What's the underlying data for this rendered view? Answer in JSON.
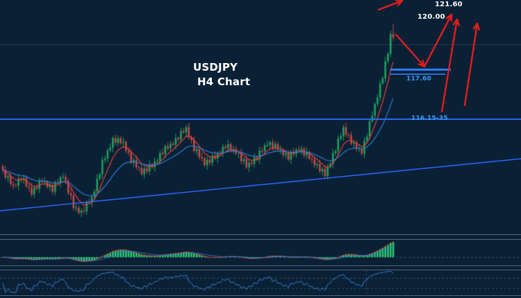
{
  "header": {
    "symbol": "USDJPY",
    "timeframe": "H4 Chart"
  },
  "annotations_text": {
    "target_upper": "121.60",
    "target_round": "120.00",
    "level_broken": "117.60",
    "level_zone": "116.15-35"
  },
  "colors": {
    "background": "#0a2035",
    "bull": "#1fa35c",
    "bear": "#c74a44",
    "ma_fast": "#e8413a",
    "ma_slow": "#2f7ed8",
    "histogram": "#2ecc71",
    "oscillator": "#3f7fd6",
    "level_blue": "#2d7dfc",
    "trendline_blue": "#2b63f5",
    "arrow_red": "#e31e1e",
    "label_blue": "#3b9dff",
    "label_white": "#ffffff"
  },
  "chart_data": {
    "type": "candlestick",
    "symbol": "USDJPY",
    "timeframe": "H4",
    "ylim": [
      112.35,
      120.4
    ],
    "price_levels": [
      {
        "label": "117.60",
        "price": 117.6,
        "role": "broken-resistance"
      },
      {
        "label": "116.15-35",
        "price_low": 116.15,
        "price_high": 116.35,
        "role": "support-zone"
      }
    ],
    "projection_targets": [
      120.0,
      121.6
    ],
    "trendline": {
      "start_price": 113.15,
      "end_price": 114.95
    },
    "indicators": {
      "overlay_mas": [
        {
          "type": "EMA",
          "period": 7,
          "color_key": "ma_fast"
        },
        {
          "type": "EMA",
          "period": 20,
          "color_key": "ma_slow"
        }
      ],
      "pane1": {
        "type": "MACD",
        "fast": 12,
        "slow": 26,
        "signal": 9
      },
      "pane2": {
        "type": "RSI",
        "period": 6,
        "levels": [
          70,
          30
        ]
      }
    },
    "arrows": [
      {
        "name": "projection-arrow-offscreen",
        "points": [
          [
            545,
            14
          ],
          [
            579,
            1
          ]
        ]
      },
      {
        "name": "projection-dip-arrow",
        "points": [
          [
            570,
            50
          ],
          [
            611,
            96
          ]
        ]
      },
      {
        "name": "projection-rally-arrow-1",
        "points": [
          [
            611,
            96
          ],
          [
            650,
            21
          ]
        ]
      },
      {
        "name": "projection-rally-arrow-2",
        "points": [
          [
            636,
            161
          ],
          [
            658,
            28
          ]
        ]
      },
      {
        "name": "projection-rally-arrow-3",
        "points": [
          [
            669,
            152
          ],
          [
            687,
            34
          ]
        ]
      }
    ],
    "session_divider_x": 527,
    "candles": [
      [
        114.68,
        114.76,
        114.44,
        114.56
      ],
      [
        114.56,
        114.71,
        114.23,
        114.29
      ],
      [
        114.29,
        114.41,
        114.14,
        114.35
      ],
      [
        114.35,
        114.47,
        113.99,
        114.08
      ],
      [
        114.08,
        114.18,
        113.91,
        114.03
      ],
      [
        114.03,
        114.11,
        113.96,
        114.02
      ],
      [
        114.02,
        114.41,
        113.87,
        114.26
      ],
      [
        114.26,
        114.32,
        114.12,
        114.21
      ],
      [
        114.21,
        114.4,
        114.09,
        114.28
      ],
      [
        114.28,
        114.38,
        113.94,
        114.0
      ],
      [
        114.0,
        114.08,
        113.81,
        113.96
      ],
      [
        113.96,
        114.11,
        113.63,
        113.72
      ],
      [
        113.72,
        114.02,
        113.6,
        113.96
      ],
      [
        113.96,
        114.08,
        113.85,
        113.91
      ],
      [
        113.91,
        114.3,
        113.76,
        114.2
      ],
      [
        114.2,
        114.28,
        114.06,
        114.15
      ],
      [
        114.15,
        114.31,
        114.03,
        114.16
      ],
      [
        114.16,
        114.22,
        113.91,
        113.97
      ],
      [
        113.97,
        114.16,
        113.82,
        114.04
      ],
      [
        114.04,
        114.14,
        113.72,
        113.81
      ],
      [
        113.81,
        114.21,
        113.69,
        114.13
      ],
      [
        114.13,
        114.25,
        114.04,
        114.1
      ],
      [
        114.1,
        114.37,
        113.95,
        114.31
      ],
      [
        114.31,
        114.44,
        114.22,
        114.32
      ],
      [
        114.32,
        114.42,
        114.07,
        114.19
      ],
      [
        114.19,
        114.27,
        113.7,
        113.76
      ],
      [
        113.76,
        113.91,
        113.53,
        113.68
      ],
      [
        113.68,
        113.74,
        113.16,
        113.25
      ],
      [
        113.25,
        113.38,
        113.13,
        113.26
      ],
      [
        113.26,
        113.36,
        113.03,
        113.09
      ],
      [
        113.09,
        113.24,
        112.94,
        113.16
      ],
      [
        113.16,
        113.31,
        113.05,
        113.14
      ],
      [
        113.14,
        113.51,
        113.02,
        113.45
      ],
      [
        113.45,
        113.57,
        113.37,
        113.43
      ],
      [
        113.43,
        113.73,
        113.28,
        113.63
      ],
      [
        113.63,
        113.9,
        113.54,
        113.82
      ],
      [
        113.82,
        114.41,
        113.7,
        114.26
      ],
      [
        114.26,
        114.47,
        114.2,
        114.41
      ],
      [
        114.41,
        115.02,
        114.26,
        114.9
      ],
      [
        114.9,
        115.05,
        114.81,
        114.95
      ],
      [
        114.95,
        115.31,
        114.83,
        115.23
      ],
      [
        115.23,
        115.47,
        115.17,
        115.32
      ],
      [
        115.32,
        115.72,
        115.17,
        115.66
      ],
      [
        115.66,
        115.78,
        115.4,
        115.49
      ],
      [
        115.49,
        115.75,
        115.37,
        115.65
      ],
      [
        115.65,
        115.73,
        115.42,
        115.48
      ],
      [
        115.48,
        115.68,
        115.33,
        115.53
      ],
      [
        115.53,
        115.59,
        115.13,
        115.22
      ],
      [
        115.22,
        115.34,
        115.04,
        115.16
      ],
      [
        115.16,
        115.26,
        114.75,
        114.81
      ],
      [
        114.81,
        114.98,
        114.66,
        114.9
      ],
      [
        114.9,
        115.05,
        114.56,
        114.65
      ],
      [
        114.65,
        114.71,
        114.51,
        114.63
      ],
      [
        114.63,
        114.75,
        114.36,
        114.42
      ],
      [
        114.42,
        114.71,
        114.27,
        114.61
      ],
      [
        114.61,
        114.69,
        114.42,
        114.51
      ],
      [
        114.51,
        114.9,
        114.39,
        114.75
      ],
      [
        114.75,
        114.81,
        114.59,
        114.65
      ],
      [
        114.65,
        114.98,
        114.5,
        114.86
      ],
      [
        114.86,
        114.97,
        114.77,
        114.87
      ],
      [
        114.87,
        115.22,
        114.75,
        115.14
      ],
      [
        115.14,
        115.29,
        115.05,
        115.11
      ],
      [
        115.11,
        115.44,
        114.96,
        115.38
      ],
      [
        115.38,
        115.5,
        115.21,
        115.3
      ],
      [
        115.3,
        115.56,
        115.18,
        115.46
      ],
      [
        115.46,
        115.54,
        115.36,
        115.42
      ],
      [
        115.42,
        115.81,
        115.27,
        115.66
      ],
      [
        115.66,
        115.72,
        115.52,
        115.61
      ],
      [
        115.61,
        116.02,
        115.49,
        115.9
      ],
      [
        115.9,
        116.0,
        115.79,
        115.85
      ],
      [
        115.85,
        116.11,
        115.7,
        116.03
      ],
      [
        116.03,
        116.18,
        115.6,
        115.69
      ],
      [
        115.69,
        115.75,
        115.47,
        115.59
      ],
      [
        115.59,
        115.71,
        115.15,
        115.21
      ],
      [
        115.21,
        115.38,
        115.06,
        115.28
      ],
      [
        115.28,
        115.36,
        114.91,
        115.0
      ],
      [
        115.0,
        115.15,
        114.84,
        114.96
      ],
      [
        114.96,
        115.02,
        114.66,
        114.72
      ],
      [
        114.72,
        115.03,
        114.57,
        114.91
      ],
      [
        114.91,
        115.01,
        114.72,
        114.81
      ],
      [
        114.81,
        115.13,
        114.69,
        115.05
      ],
      [
        115.05,
        115.2,
        114.89,
        114.95
      ],
      [
        114.95,
        115.19,
        114.8,
        115.13
      ],
      [
        115.13,
        115.25,
        115.03,
        115.12
      ],
      [
        115.12,
        115.46,
        115.0,
        115.36
      ],
      [
        115.36,
        115.44,
        115.25,
        115.31
      ],
      [
        115.31,
        115.6,
        115.16,
        115.45
      ],
      [
        115.45,
        115.51,
        115.16,
        115.25
      ],
      [
        115.25,
        115.4,
        115.13,
        115.28
      ],
      [
        115.28,
        115.38,
        115.06,
        115.12
      ],
      [
        115.12,
        115.22,
        114.97,
        115.14
      ],
      [
        115.14,
        115.29,
        114.77,
        114.86
      ],
      [
        114.86,
        114.99,
        114.74,
        114.93
      ],
      [
        114.93,
        115.05,
        114.59,
        114.65
      ],
      [
        114.65,
        114.91,
        114.5,
        114.81
      ],
      [
        114.81,
        114.89,
        114.68,
        114.77
      ],
      [
        114.77,
        115.14,
        114.65,
        114.99
      ],
      [
        114.99,
        115.05,
        114.85,
        114.91
      ],
      [
        114.91,
        115.35,
        114.76,
        115.23
      ],
      [
        115.23,
        115.33,
        115.11,
        115.2
      ],
      [
        115.2,
        115.49,
        115.08,
        115.41
      ],
      [
        115.41,
        115.57,
        115.35,
        115.42
      ],
      [
        115.42,
        115.57,
        115.27,
        115.51
      ],
      [
        115.51,
        115.63,
        115.22,
        115.31
      ],
      [
        115.31,
        115.55,
        115.19,
        115.45
      ],
      [
        115.45,
        115.53,
        115.19,
        115.25
      ],
      [
        115.25,
        115.41,
        115.1,
        115.26
      ],
      [
        115.26,
        115.32,
        114.98,
        115.07
      ],
      [
        115.07,
        115.26,
        114.95,
        115.14
      ],
      [
        115.14,
        115.24,
        114.85,
        114.91
      ],
      [
        114.91,
        115.26,
        114.76,
        115.18
      ],
      [
        115.18,
        115.33,
        115.01,
        115.1
      ],
      [
        115.1,
        115.32,
        114.98,
        115.26
      ],
      [
        115.26,
        115.38,
        115.16,
        115.22
      ],
      [
        115.22,
        115.39,
        115.07,
        115.29
      ],
      [
        115.29,
        115.37,
        114.97,
        115.06
      ],
      [
        115.06,
        115.33,
        114.94,
        115.18
      ],
      [
        115.18,
        115.24,
        114.89,
        114.95
      ],
      [
        114.95,
        115.07,
        114.78,
        114.93
      ],
      [
        114.93,
        115.03,
        114.63,
        114.72
      ],
      [
        114.72,
        114.84,
        114.6,
        114.76
      ],
      [
        114.76,
        114.91,
        114.45,
        114.51
      ],
      [
        114.51,
        114.66,
        114.36,
        114.6
      ],
      [
        114.6,
        114.72,
        114.26,
        114.35
      ],
      [
        114.35,
        114.76,
        114.23,
        114.66
      ],
      [
        114.66,
        114.85,
        114.6,
        114.77
      ],
      [
        114.77,
        115.29,
        114.62,
        115.14
      ],
      [
        115.14,
        115.27,
        115.05,
        115.21
      ],
      [
        115.21,
        115.75,
        115.09,
        115.63
      ],
      [
        115.63,
        115.82,
        115.57,
        115.72
      ],
      [
        115.72,
        116.11,
        115.57,
        116.03
      ],
      [
        116.03,
        116.18,
        115.68,
        115.77
      ],
      [
        115.77,
        115.83,
        115.64,
        115.76
      ],
      [
        115.76,
        115.88,
        115.4,
        115.46
      ],
      [
        115.46,
        115.6,
        115.31,
        115.5
      ],
      [
        115.5,
        115.58,
        115.19,
        115.28
      ],
      [
        115.28,
        115.45,
        115.16,
        115.3
      ],
      [
        115.3,
        115.36,
        115.06,
        115.12
      ],
      [
        115.12,
        115.68,
        114.97,
        115.56
      ],
      [
        115.56,
        115.81,
        115.47,
        115.71
      ],
      [
        115.71,
        116.31,
        115.59,
        116.23
      ],
      [
        116.23,
        116.57,
        116.17,
        116.42
      ],
      [
        116.42,
        116.89,
        116.27,
        116.83
      ],
      [
        116.83,
        117.17,
        116.74,
        117.05
      ],
      [
        117.05,
        117.63,
        116.93,
        117.53
      ],
      [
        117.53,
        117.79,
        117.47,
        117.71
      ],
      [
        117.71,
        118.45,
        117.56,
        118.3
      ],
      [
        118.3,
        118.61,
        118.21,
        118.55
      ],
      [
        118.55,
        119.35,
        118.43,
        119.23
      ],
      [
        119.23,
        119.58,
        119.0,
        119.1
      ]
    ]
  }
}
